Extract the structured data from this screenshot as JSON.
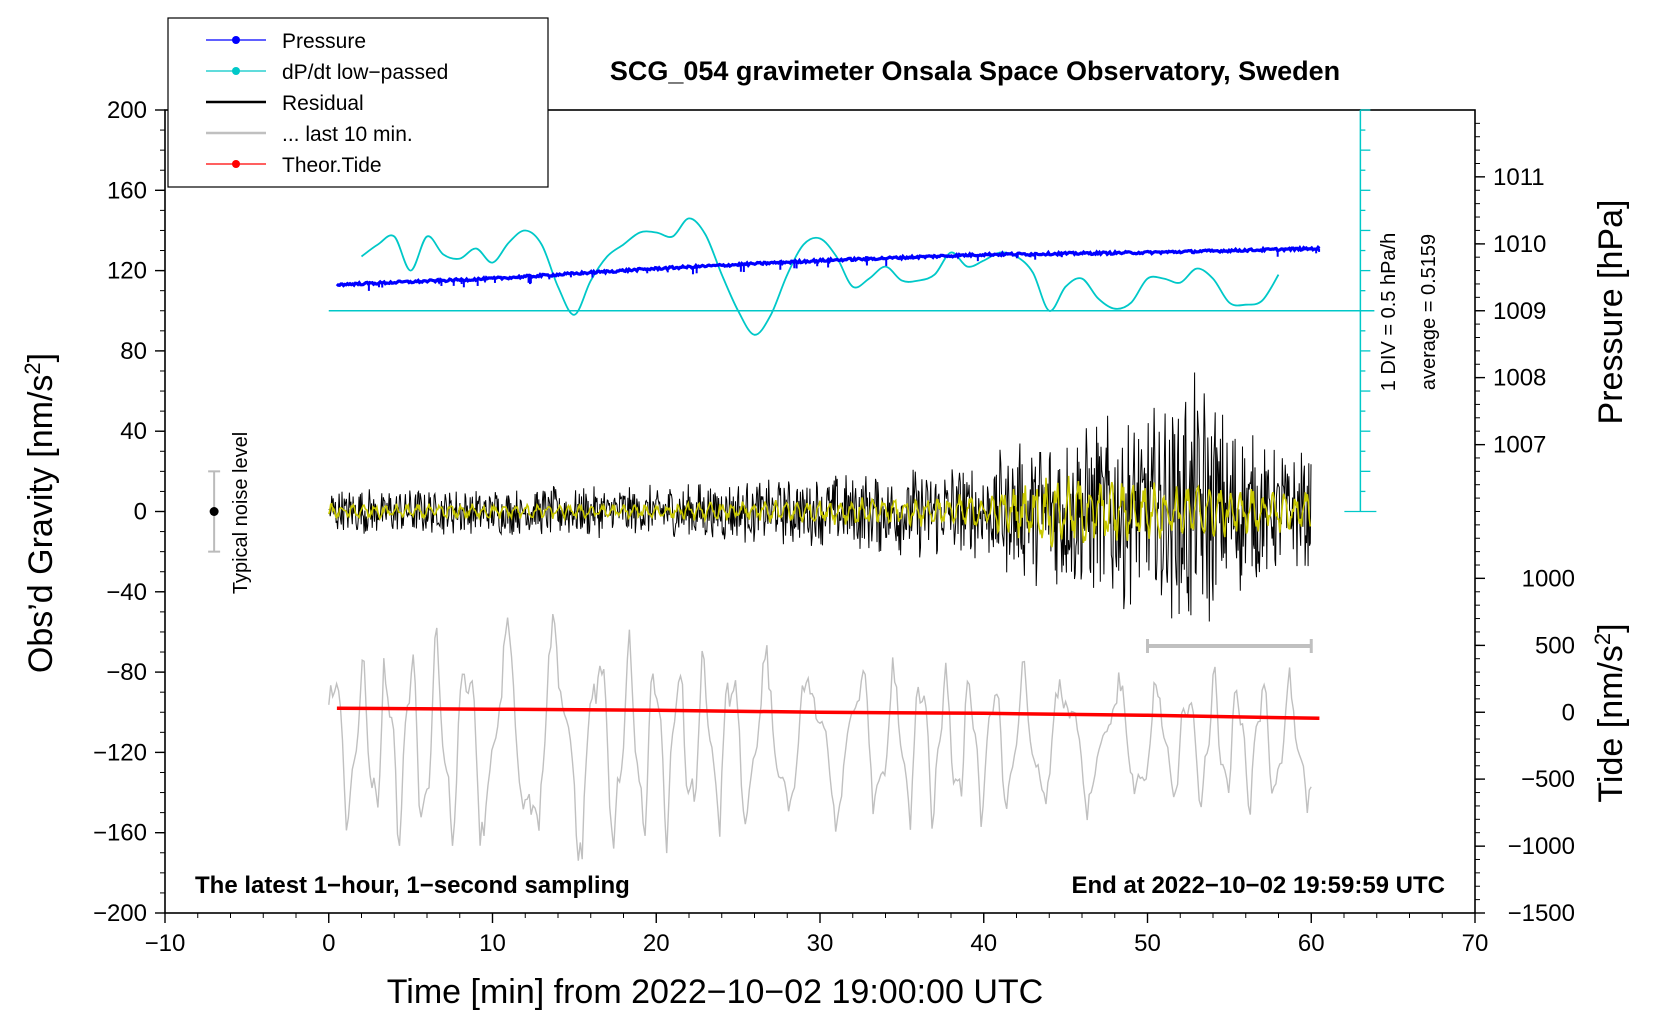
{
  "chart_data": {
    "type": "line",
    "title": "SCG_054 gravimeter Onsala Space Observatory, Sweden",
    "xlabel": "Time [min] from 2022−10−02 19:00:00 UTC",
    "ylabel": {
      "main": "Obs’d Gravity [nm/s",
      "sup": "2",
      "close": "]"
    },
    "y2label": "Pressure [hPa]",
    "y3label": {
      "main": "Tide [nm/s",
      "sup": "2",
      "close": "]"
    },
    "xlim": [
      -10,
      70
    ],
    "ylim": [
      -200,
      200
    ],
    "xticks": [
      -10,
      0,
      10,
      20,
      30,
      40,
      50,
      60,
      70
    ],
    "xtick_labels": [
      "−10",
      "0",
      "10",
      "20",
      "30",
      "40",
      "50",
      "60",
      "70"
    ],
    "yticks": [
      -200,
      -160,
      -120,
      -80,
      -40,
      0,
      40,
      80,
      120,
      160,
      200
    ],
    "ytick_labels": [
      "−200",
      "−160",
      "−120",
      "−80",
      "−40",
      "0",
      "40",
      "80",
      "120",
      "160",
      "200"
    ],
    "pressure_axis": {
      "ticks": [
        1007,
        1008,
        1009,
        1010,
        1011
      ],
      "labels": [
        "1007",
        "1008",
        "1009",
        "1010",
        "1011"
      ],
      "gravity_equiv": [
        33.3,
        66.7,
        100,
        133.3,
        166.7
      ]
    },
    "tide_axis": {
      "ticks": [
        -1500,
        -1000,
        -500,
        0,
        500,
        1000
      ],
      "labels": [
        "−1500",
        "−1000",
        "−500",
        "0",
        "500",
        "1000"
      ],
      "gravity_equiv": [
        -200,
        -166.7,
        -133.3,
        -100,
        -66.7,
        -33.3
      ]
    },
    "legend": {
      "placement": "top-left",
      "entries": [
        {
          "label": "Pressure",
          "color": "#0000ff",
          "marker": true
        },
        {
          "label": "dP/dt low−passed",
          "color": "#00c8c8",
          "marker": true
        },
        {
          "label": "Residual",
          "color": "#000000",
          "marker": false
        },
        {
          "label": "... last 10 min.",
          "color": "#c0c0c0",
          "marker": false
        },
        {
          "label": "Theor.Tide",
          "color": "#ff0000",
          "marker": true
        }
      ]
    },
    "annotations": {
      "noise_label": "Typical noise level",
      "div_label": "1 DIV = 0.5 hPa/h",
      "avg_label": "average = 0.5159",
      "bottom_left": "The latest 1−hour, 1−second sampling",
      "bottom_right": "End at 2022−10−02 19:59:59 UTC"
    },
    "noise_bar": {
      "x": -7,
      "center": 0,
      "half_range": 20
    },
    "last10_bar": {
      "x_start": 50,
      "x_end": 60,
      "y": -67
    },
    "dpdt_baseline": {
      "y": 100,
      "x_start": 0,
      "x_end": 63
    },
    "dpdt_scale": {
      "x": 63,
      "y_min": 0,
      "y_max": 200,
      "minor_step": 10,
      "major_step": 20
    },
    "series": [
      {
        "name": "Pressure",
        "color": "#0000ff",
        "x": [
          0.5,
          10,
          20,
          30,
          40,
          50,
          60.5
        ],
        "y": [
          113,
          116,
          121,
          125,
          128,
          129,
          131
        ]
      },
      {
        "name": "dP/dt low−passed",
        "color": "#00c8c8",
        "x": [
          2,
          3,
          4,
          5,
          6,
          7,
          8,
          9,
          10,
          11,
          12,
          13,
          14,
          15,
          16,
          17,
          18,
          19,
          20,
          21,
          22,
          23,
          24,
          25,
          26,
          27,
          28,
          29,
          30,
          31,
          32,
          33,
          34,
          35,
          36,
          37,
          38,
          39,
          40,
          41,
          42,
          43,
          44,
          45,
          46,
          47,
          48,
          49,
          50,
          51,
          52,
          53,
          54,
          55,
          56,
          57,
          58
        ],
        "y": [
          127,
          133,
          137,
          120,
          137,
          128,
          126,
          131,
          124,
          134,
          140,
          133,
          112,
          98,
          115,
          127,
          133,
          139,
          139,
          137,
          146,
          138,
          118,
          100,
          88,
          98,
          118,
          133,
          136,
          127,
          112,
          116,
          122,
          115,
          115,
          118,
          129,
          122,
          125,
          129,
          127,
          119,
          100,
          112,
          116,
          106,
          101,
          104,
          116,
          116,
          114,
          121,
          116,
          104,
          103,
          105,
          118
        ]
      },
      {
        "name": "Residual",
        "color": "#000000",
        "x": [
          0,
          60
        ],
        "y": [
          0,
          0
        ],
        "envelope": [
          [
            0,
            12
          ],
          [
            10,
            12
          ],
          [
            20,
            14
          ],
          [
            30,
            18
          ],
          [
            40,
            28
          ],
          [
            44,
            40
          ],
          [
            50,
            55
          ],
          [
            53,
            70
          ],
          [
            56,
            40
          ],
          [
            60,
            30
          ]
        ]
      },
      {
        "name": "Residual smoothed",
        "color": "#c8c800",
        "x": [
          0,
          60
        ],
        "y": [
          0,
          0
        ],
        "envelope": [
          [
            0,
            3
          ],
          [
            20,
            3
          ],
          [
            30,
            5
          ],
          [
            40,
            7
          ],
          [
            44,
            15
          ],
          [
            50,
            12
          ],
          [
            56,
            10
          ],
          [
            60,
            8
          ]
        ]
      },
      {
        "name": "... last 10 min.",
        "color": "#c0c0c0",
        "x": [
          0,
          60
        ],
        "y": [
          -115,
          -115
        ],
        "envelope": [
          [
            0,
            45
          ],
          [
            10,
            60
          ],
          [
            15,
            65
          ],
          [
            20,
            50
          ],
          [
            30,
            45
          ],
          [
            40,
            40
          ],
          [
            50,
            35
          ],
          [
            60,
            35
          ]
        ]
      },
      {
        "name": "Theor.Tide",
        "color": "#ff0000",
        "x": [
          0.5,
          10,
          20,
          30,
          40,
          50,
          60.5
        ],
        "y": [
          -98,
          -98.5,
          -99,
          -100,
          -100.5,
          -101.5,
          -103
        ]
      }
    ]
  }
}
